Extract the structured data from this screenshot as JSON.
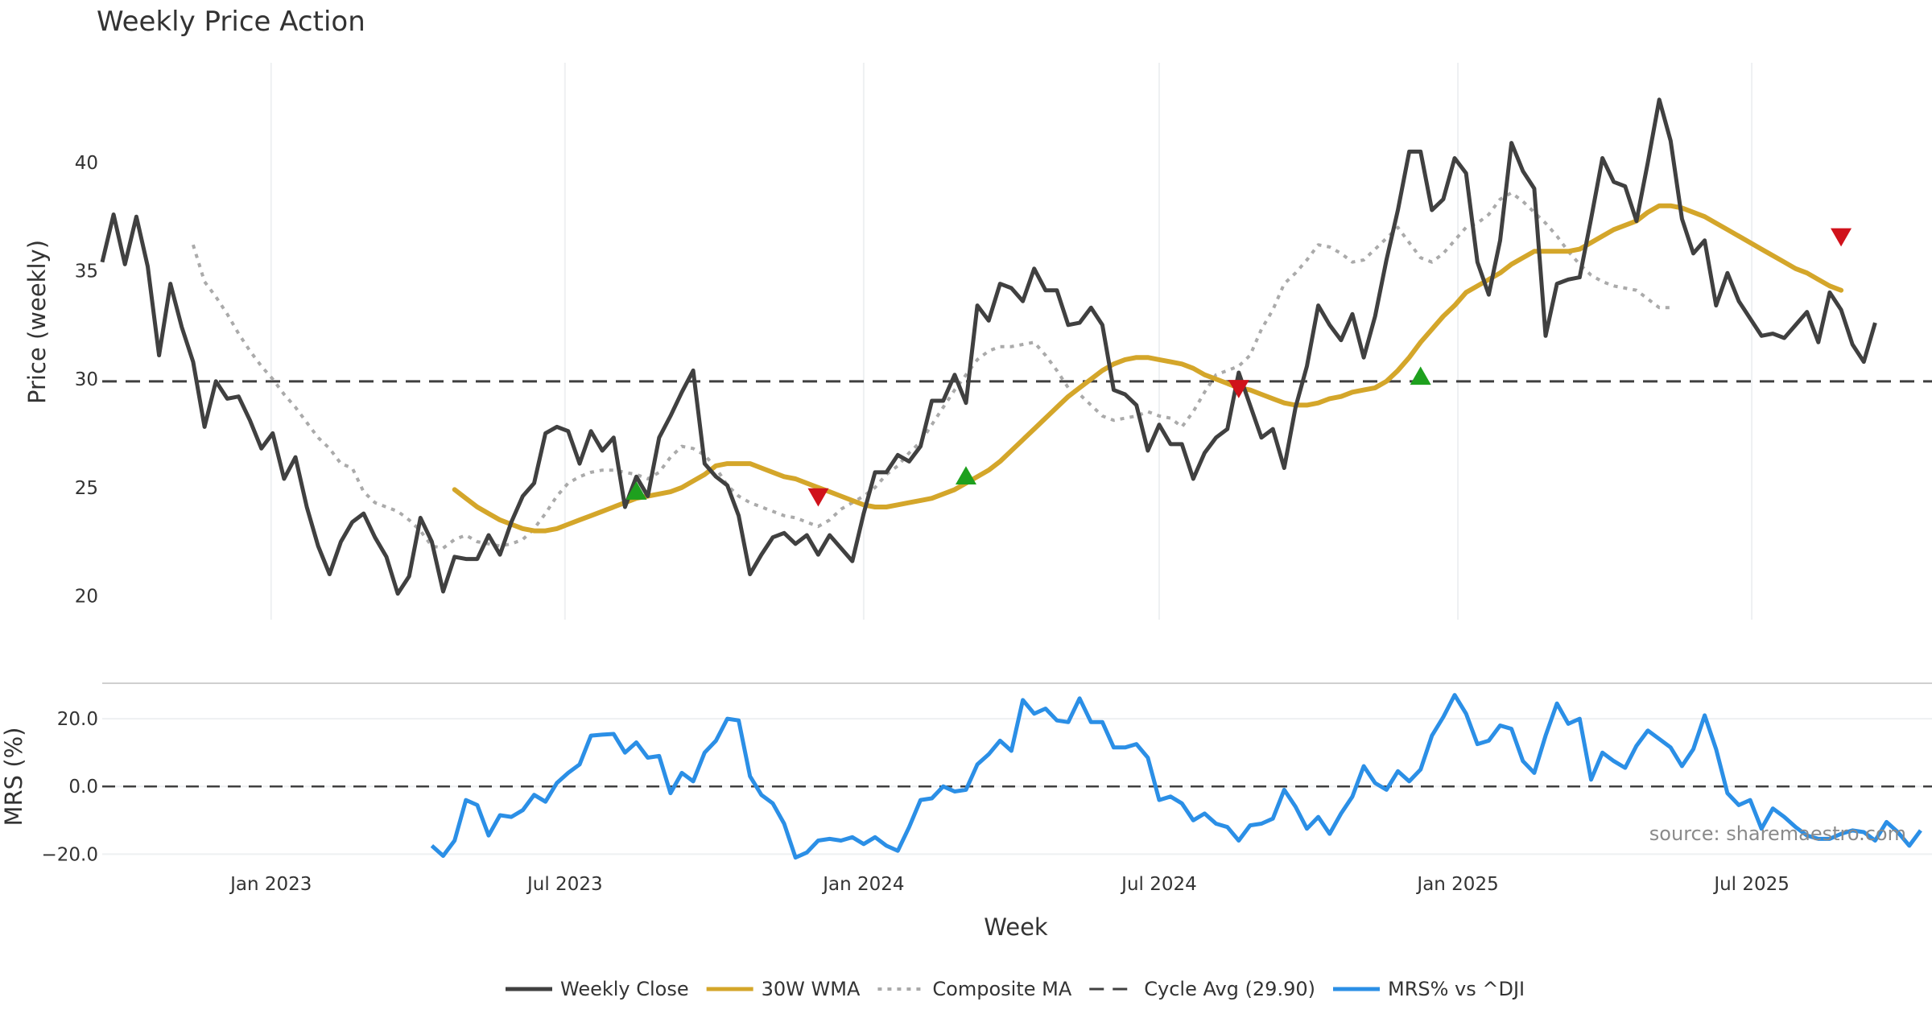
{
  "chart_data": {
    "type": "line",
    "title": "Weekly Price Action",
    "source": "source: sharemaestro.com",
    "colors": {
      "close": "#404040",
      "wma": "#d4a62a",
      "composite": "#aaaaaa",
      "cycle": "#404040",
      "mrs": "#2b8fe6",
      "buy": "#1ea01e",
      "sell": "#d0121b"
    },
    "xaxis": {
      "label": "Week",
      "range": [
        "2022-09-19",
        "2025-10-20"
      ],
      "ticks": [
        {
          "date": "2023-01-01",
          "label": "Jan 2023"
        },
        {
          "date": "2023-07-01",
          "label": "Jul 2023"
        },
        {
          "date": "2024-01-01",
          "label": "Jan 2024"
        },
        {
          "date": "2024-07-01",
          "label": "Jul 2024"
        },
        {
          "date": "2025-01-01",
          "label": "Jan 2025"
        },
        {
          "date": "2025-07-01",
          "label": "Jul 2025"
        }
      ]
    },
    "price_panel": {
      "ylabel": "Price (weekly)",
      "ylim": [
        18.9,
        44.6
      ],
      "yticks": [
        {
          "value": 20,
          "label": "20"
        },
        {
          "value": 25,
          "label": "25"
        },
        {
          "value": 30,
          "label": "30"
        },
        {
          "value": 35,
          "label": "35"
        },
        {
          "value": 40,
          "label": "40"
        }
      ],
      "cycle_avg": 29.9,
      "close_start": "2022-09-19",
      "close": [
        35.4,
        37.6,
        35.3,
        37.5,
        35.2,
        31.1,
        34.4,
        32.4,
        30.8,
        27.8,
        29.9,
        29.1,
        29.2,
        28.1,
        26.8,
        27.5,
        25.4,
        26.4,
        24.1,
        22.3,
        21.0,
        22.5,
        23.4,
        23.8,
        22.7,
        21.8,
        20.1,
        20.9,
        23.6,
        22.5,
        20.2,
        21.8,
        21.7,
        21.7,
        22.8,
        21.9,
        23.4,
        24.6,
        25.2,
        27.5,
        27.8,
        27.6,
        26.1,
        27.6,
        26.7,
        27.3,
        24.1,
        25.5,
        24.6,
        27.3,
        28.3,
        29.4,
        30.4,
        26.1,
        25.5,
        25.1,
        23.7,
        21.0,
        21.9,
        22.7,
        22.9,
        22.4,
        22.8,
        21.9,
        22.8,
        22.2,
        21.6,
        23.8,
        25.7,
        25.7,
        26.5,
        26.2,
        26.9,
        29.0,
        29.0,
        30.2,
        28.9,
        33.4,
        32.7,
        34.4,
        34.2,
        33.6,
        35.1,
        34.1,
        34.1,
        32.5,
        32.6,
        33.3,
        32.5,
        29.5,
        29.3,
        28.8,
        26.7,
        27.9,
        27.0,
        27.0,
        25.4,
        26.6,
        27.3,
        27.7,
        30.3,
        28.8,
        27.3,
        27.7,
        25.9,
        28.7,
        30.6,
        33.4,
        32.5,
        31.8,
        33.0,
        31.0,
        32.9,
        35.5,
        37.8,
        40.5,
        40.5,
        37.8,
        38.3,
        40.2,
        39.5,
        35.4,
        33.9,
        36.4,
        40.9,
        39.6,
        38.8,
        32.0,
        34.4,
        34.6,
        34.7,
        37.4,
        40.2,
        39.1,
        38.9,
        37.3,
        40.0,
        42.9,
        41.0,
        37.4,
        35.8,
        36.4,
        33.4,
        34.9,
        33.6,
        32.8,
        32.0,
        32.1,
        31.9,
        32.5,
        33.1,
        31.7,
        34.0,
        33.2,
        31.6,
        30.8,
        32.6
      ],
      "wma_start": "2023-04-24",
      "wma": [
        24.9,
        24.5,
        24.1,
        23.8,
        23.5,
        23.3,
        23.1,
        23.0,
        23.0,
        23.1,
        23.3,
        23.5,
        23.7,
        23.9,
        24.1,
        24.3,
        24.5,
        24.6,
        24.7,
        24.8,
        25.0,
        25.3,
        25.6,
        26.0,
        26.1,
        26.1,
        26.1,
        25.9,
        25.7,
        25.5,
        25.4,
        25.2,
        25.0,
        24.8,
        24.6,
        24.4,
        24.2,
        24.1,
        24.1,
        24.2,
        24.3,
        24.4,
        24.5,
        24.7,
        24.9,
        25.2,
        25.5,
        25.8,
        26.2,
        26.7,
        27.2,
        27.7,
        28.2,
        28.7,
        29.2,
        29.6,
        30.0,
        30.4,
        30.7,
        30.9,
        31.0,
        31.0,
        30.9,
        30.8,
        30.7,
        30.5,
        30.2,
        30.0,
        29.8,
        29.6,
        29.5,
        29.3,
        29.1,
        28.9,
        28.8,
        28.8,
        28.9,
        29.1,
        29.2,
        29.4,
        29.5,
        29.6,
        29.9,
        30.4,
        31.0,
        31.7,
        32.3,
        32.9,
        33.4,
        34.0,
        34.3,
        34.6,
        34.9,
        35.3,
        35.6,
        35.9,
        35.9,
        35.9,
        35.9,
        36.0,
        36.3,
        36.6,
        36.9,
        37.1,
        37.3,
        37.7,
        38.0,
        38.0,
        37.9,
        37.7,
        37.5,
        37.2,
        36.9,
        36.6,
        36.3,
        36.0,
        35.7,
        35.4,
        35.1,
        34.9,
        34.6,
        34.3,
        34.1
      ],
      "composite_start": "2022-11-14",
      "composite": [
        36.2,
        34.5,
        33.8,
        33.0,
        32.1,
        31.3,
        30.6,
        30.0,
        29.3,
        28.7,
        28.0,
        27.3,
        26.8,
        26.1,
        25.9,
        24.8,
        24.3,
        24.1,
        23.9,
        23.5,
        23.0,
        22.3,
        22.2,
        22.6,
        22.8,
        22.5,
        22.4,
        22.3,
        22.4,
        22.6,
        23.1,
        23.8,
        24.6,
        25.2,
        25.5,
        25.7,
        25.8,
        25.8,
        25.7,
        25.6,
        25.4,
        25.7,
        26.4,
        26.9,
        26.8,
        26.5,
        25.9,
        25.1,
        24.6,
        24.3,
        24.1,
        23.9,
        23.7,
        23.6,
        23.4,
        23.2,
        23.5,
        24.0,
        24.3,
        24.6,
        25.0,
        25.6,
        26.0,
        26.6,
        27.1,
        27.9,
        28.7,
        29.5,
        30.2,
        30.9,
        31.3,
        31.5,
        31.5,
        31.6,
        31.7,
        31.1,
        30.4,
        29.6,
        29.3,
        28.8,
        28.3,
        28.1,
        28.2,
        28.3,
        28.5,
        28.3,
        28.2,
        27.8,
        28.5,
        29.4,
        30.2,
        30.4,
        30.6,
        31.1,
        32.3,
        33.2,
        34.4,
        34.9,
        35.5,
        36.2,
        36.1,
        35.8,
        35.4,
        35.5,
        36.0,
        36.5,
        37.0,
        36.3,
        35.6,
        35.4,
        35.8,
        36.4,
        37.0,
        37.2,
        37.6,
        38.3,
        38.6,
        38.2,
        37.7,
        37.2,
        36.6,
        35.9,
        35.3,
        34.8,
        34.5,
        34.3,
        34.2,
        34.1,
        33.7,
        33.3,
        33.3
      ],
      "markers": [
        {
          "date": "2023-08-14",
          "price": 24.8,
          "kind": "buy"
        },
        {
          "date": "2023-12-04",
          "price": 24.6,
          "kind": "sell"
        },
        {
          "date": "2024-03-04",
          "price": 25.5,
          "kind": "buy"
        },
        {
          "date": "2024-08-19",
          "price": 29.6,
          "kind": "sell"
        },
        {
          "date": "2024-12-09",
          "price": 30.1,
          "kind": "buy"
        },
        {
          "date": "2025-08-25",
          "price": 36.6,
          "kind": "sell"
        }
      ]
    },
    "mrs_panel": {
      "ylabel": "MRS (%)",
      "ylim": [
        -23,
        30
      ],
      "yticks": [
        {
          "value": 20,
          "label": "20.0"
        },
        {
          "value": 0,
          "label": "0.0"
        },
        {
          "value": -20,
          "label": "−20.0"
        }
      ],
      "start": "2023-04-10",
      "values": [
        -17.5,
        -20.5,
        -16.0,
        -4.0,
        -5.5,
        -14.5,
        -8.5,
        -9.0,
        -7.0,
        -2.5,
        -4.5,
        1.0,
        4.0,
        6.5,
        15.0,
        15.3,
        15.5,
        10.0,
        13.0,
        8.5,
        9.0,
        -2.0,
        4.0,
        1.5,
        10.0,
        13.5,
        20.0,
        19.5,
        3.0,
        -2.5,
        -5.0,
        -11.0,
        -21.0,
        -19.5,
        -16.0,
        -15.5,
        -16.0,
        -15.0,
        -17.0,
        -15.0,
        -17.5,
        -19.0,
        -12.0,
        -4.0,
        -3.5,
        0.0,
        -1.5,
        -1.0,
        6.5,
        9.5,
        13.5,
        10.5,
        25.5,
        21.5,
        23.0,
        19.5,
        19.0,
        26.0,
        19.0,
        19.0,
        11.5,
        11.5,
        12.5,
        8.5,
        -4.0,
        -3.0,
        -5.0,
        -10.0,
        -8.0,
        -11.0,
        -12.0,
        -16.0,
        -11.5,
        -11.0,
        -9.5,
        -1.0,
        -6.0,
        -12.5,
        -9.0,
        -14.0,
        -8.0,
        -3.0,
        6.0,
        1.0,
        -1.0,
        4.5,
        1.5,
        5.0,
        15.0,
        20.5,
        27.0,
        21.5,
        12.5,
        13.5,
        18.0,
        17.0,
        7.5,
        4.0,
        15.0,
        24.5,
        18.5,
        20.0,
        2.0,
        10.0,
        7.5,
        5.5,
        12.0,
        16.5,
        14.0,
        11.5,
        6.0,
        11.0,
        21.0,
        11.0,
        -2.0,
        -5.5,
        -4.0,
        -12.5,
        -6.5,
        -9.0,
        -12.0,
        -14.5,
        -15.5,
        -15.5,
        -14.0,
        -13.0,
        -13.5,
        -16.0,
        -10.5,
        -13.5,
        -17.5,
        -13.0
      ]
    },
    "legend": [
      {
        "label": "Weekly Close",
        "style": "close"
      },
      {
        "label": "30W WMA",
        "style": "wma"
      },
      {
        "label": "Composite MA",
        "style": "composite"
      },
      {
        "label": "Cycle Avg (29.90)",
        "style": "cycle"
      },
      {
        "label": "MRS% vs ^DJI",
        "style": "mrs"
      }
    ]
  }
}
